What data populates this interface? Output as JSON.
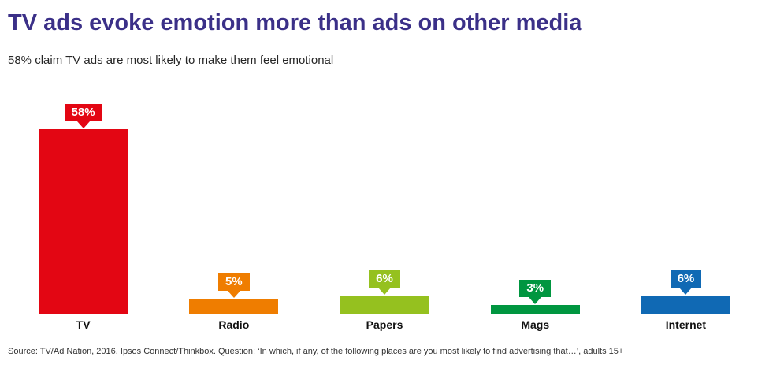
{
  "header": {
    "title": "TV ads evoke emotion more than ads on other media",
    "subtitle": "58% claim TV ads are most likely to make them feel emotional"
  },
  "chart_data": {
    "type": "bar",
    "title": "TV ads evoke emotion more than ads on other media",
    "xlabel": "",
    "ylabel": "",
    "categories": [
      "TV",
      "Radio",
      "Papers",
      "Mags",
      "Internet"
    ],
    "values": [
      58,
      5,
      6,
      3,
      6
    ],
    "value_labels": [
      "58%",
      "5%",
      "6%",
      "3%",
      "6%"
    ],
    "bar_colors": [
      "#e30613",
      "#ef7d00",
      "#95c11f",
      "#009640",
      "#1069b4"
    ],
    "ylim": [
      0,
      66
    ],
    "gridlines": [
      50
    ],
    "grid_on": true,
    "legend": "none"
  },
  "footer": {
    "source": "Source: TV/Ad Nation, 2016,  Ipsos Connect/Thinkbox.  Question: ‘In which, if any, of the following places are you most likely to find advertising that…’, adults 15+"
  },
  "colors": {
    "title": "#3b3088",
    "subtitle": "#262626",
    "grid": "#dbdbdb",
    "callout_text": "#ffffff",
    "axis_label": "#111111",
    "source_text": "#333333"
  }
}
